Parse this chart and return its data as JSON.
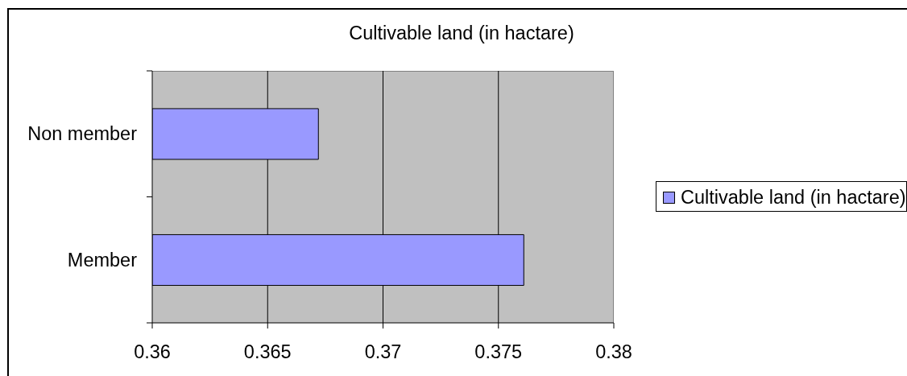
{
  "chart_data": {
    "type": "bar",
    "orientation": "horizontal",
    "title": "Cultivable land (in hactare)",
    "categories": [
      "Non member",
      "Member"
    ],
    "series": [
      {
        "name": "Cultivable land (in hactare)",
        "color": "#9999ff",
        "values": [
          0.3672,
          0.3761
        ]
      }
    ],
    "xlim": [
      0.36,
      0.38
    ],
    "xticks": [
      0.36,
      0.365,
      0.37,
      0.375,
      0.38
    ],
    "grid": "x",
    "legend": "right"
  }
}
